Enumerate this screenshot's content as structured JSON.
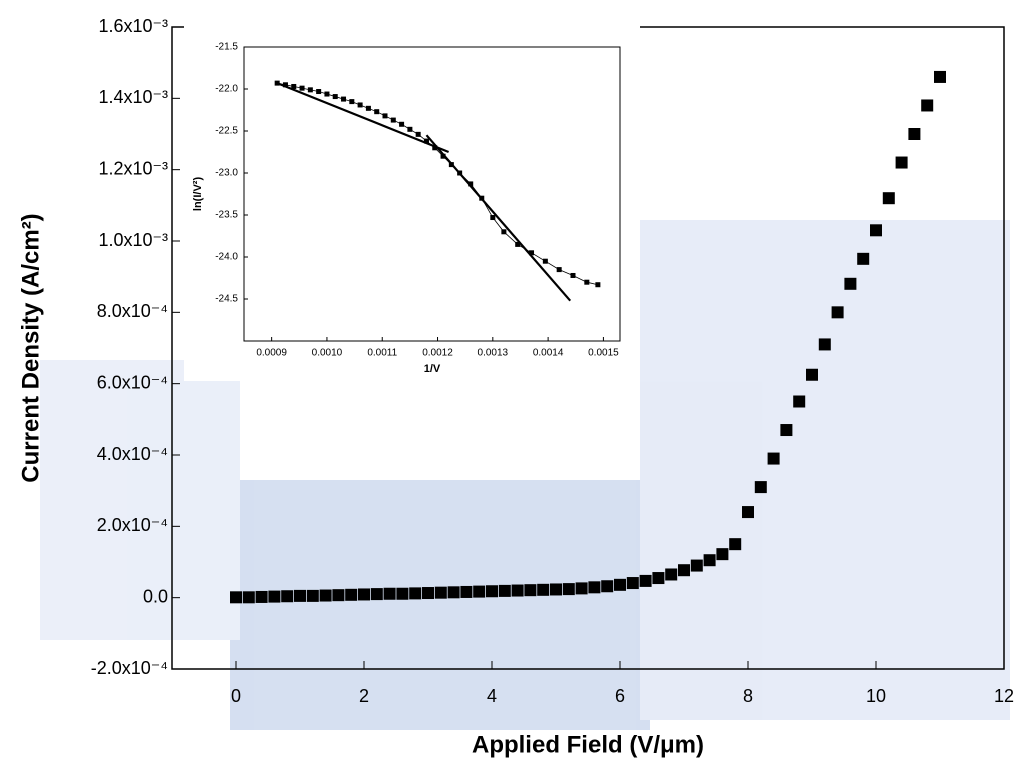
{
  "chart_data": [
    {
      "type": "scatter",
      "x_label": "Applied Field (V/μm)",
      "y_label": "Current Density (A/cm²)",
      "xlim": [
        -1,
        12
      ],
      "xticks": [
        0,
        2,
        4,
        6,
        8,
        10,
        12
      ],
      "ylim": [
        -0.0002,
        0.0016
      ],
      "yticks": [
        {
          "value": -0.0002,
          "label": "-2.0x10⁻⁴"
        },
        {
          "value": 0,
          "label": "0.0"
        },
        {
          "value": 0.0002,
          "label": "2.0x10⁻⁴"
        },
        {
          "value": 0.0004,
          "label": "4.0x10⁻⁴"
        },
        {
          "value": 0.0006,
          "label": "6.0x10⁻⁴"
        },
        {
          "value": 0.0008,
          "label": "8.0x10⁻⁴"
        },
        {
          "value": 0.001,
          "label": "1.0x10⁻³"
        },
        {
          "value": 0.0012,
          "label": "1.2x10⁻³"
        },
        {
          "value": 0.0014,
          "label": "1.4x10⁻³"
        },
        {
          "value": 0.0016,
          "label": "1.6x10⁻³"
        }
      ],
      "color": "#000000",
      "x": [
        0,
        0.2,
        0.4,
        0.6,
        0.8,
        1.0,
        1.2,
        1.4,
        1.6,
        1.8,
        2.0,
        2.2,
        2.4,
        2.6,
        2.8,
        3.0,
        3.2,
        3.4,
        3.6,
        3.8,
        4.0,
        4.2,
        4.4,
        4.6,
        4.8,
        5.0,
        5.2,
        5.4,
        5.6,
        5.8,
        6.0,
        6.2,
        6.4,
        6.6,
        6.8,
        7.0,
        7.2,
        7.4,
        7.6,
        7.8,
        8.0,
        8.2,
        8.4,
        8.6,
        8.8,
        9.0,
        9.2,
        9.4,
        9.6,
        9.8,
        10.0,
        10.2,
        10.4,
        10.6,
        10.8,
        11.0
      ],
      "values": [
        1e-06,
        1e-06,
        2e-06,
        3e-06,
        4e-06,
        5e-06,
        5e-06,
        6e-06,
        7e-06,
        8e-06,
        9e-06,
        1e-05,
        1.1e-05,
        1.1e-05,
        1.2e-05,
        1.3e-05,
        1.4e-05,
        1.5e-05,
        1.6e-05,
        1.7e-05,
        1.8e-05,
        1.9e-05,
        2e-05,
        2.1e-05,
        2.2e-05,
        2.3e-05,
        2.4e-05,
        2.6e-05,
        2.9e-05,
        3.2e-05,
        3.6e-05,
        4.1e-05,
        4.7e-05,
        5.5e-05,
        6.5e-05,
        7.7e-05,
        9e-05,
        0.000105,
        0.000122,
        0.00015,
        0.00024,
        0.00031,
        0.00039,
        0.00047,
        0.00055,
        0.000625,
        0.00071,
        0.0008,
        0.00088,
        0.00095,
        0.00103,
        0.00112,
        0.00122,
        0.0013,
        0.00138,
        0.00146
      ]
    },
    {
      "type": "line",
      "x_label": "1/V",
      "y_label": "ln(I/V²)",
      "xlim": [
        0.00085,
        0.00153
      ],
      "xticks": [
        0.0009,
        {
          "value": 0.001,
          "label": "0.0010"
        },
        0.0011,
        0.0012,
        0.0013,
        0.0014,
        {
          "value": 0.0015,
          "label": "0.0015"
        }
      ],
      "ylim": [
        -25,
        -21.5
      ],
      "yticks": [
        {
          "value": -24.5,
          "label": "-24.5"
        },
        {
          "value": -24,
          "label": "-24.0"
        },
        {
          "value": -23.5,
          "label": "-23.5"
        },
        {
          "value": -23,
          "label": "-23.0"
        },
        {
          "value": -22.5,
          "label": "-22.5"
        },
        {
          "value": -22,
          "label": "-22.0"
        },
        {
          "value": -21.5,
          "label": "-21.5"
        }
      ],
      "color": "#000000",
      "x": [
        0.00091,
        0.000925,
        0.00094,
        0.000955,
        0.00097,
        0.000985,
        0.001,
        0.001015,
        0.00103,
        0.001045,
        0.00106,
        0.001075,
        0.00109,
        0.001105,
        0.00112,
        0.001135,
        0.00115,
        0.001165,
        0.00118,
        0.001195,
        0.00121,
        0.001225,
        0.00124,
        0.00126,
        0.00128,
        0.0013,
        0.00132,
        0.001345,
        0.00137,
        0.001395,
        0.00142,
        0.001445,
        0.00147,
        0.00149
      ],
      "values": [
        -21.93,
        -21.95,
        -21.97,
        -21.99,
        -22.01,
        -22.03,
        -22.06,
        -22.09,
        -22.12,
        -22.15,
        -22.19,
        -22.23,
        -22.27,
        -22.32,
        -22.37,
        -22.42,
        -22.48,
        -22.54,
        -22.62,
        -22.7,
        -22.8,
        -22.9,
        -23.0,
        -23.13,
        -23.3,
        -23.53,
        -23.7,
        -23.85,
        -23.95,
        -24.05,
        -24.15,
        -24.22,
        -24.3,
        -24.33
      ],
      "fits": [
        {
          "x": [
            0.00091,
            0.00122
          ],
          "values": [
            -21.93,
            -22.75
          ]
        },
        {
          "x": [
            0.00118,
            0.00144
          ],
          "values": [
            -22.55,
            -24.52
          ]
        }
      ]
    }
  ]
}
